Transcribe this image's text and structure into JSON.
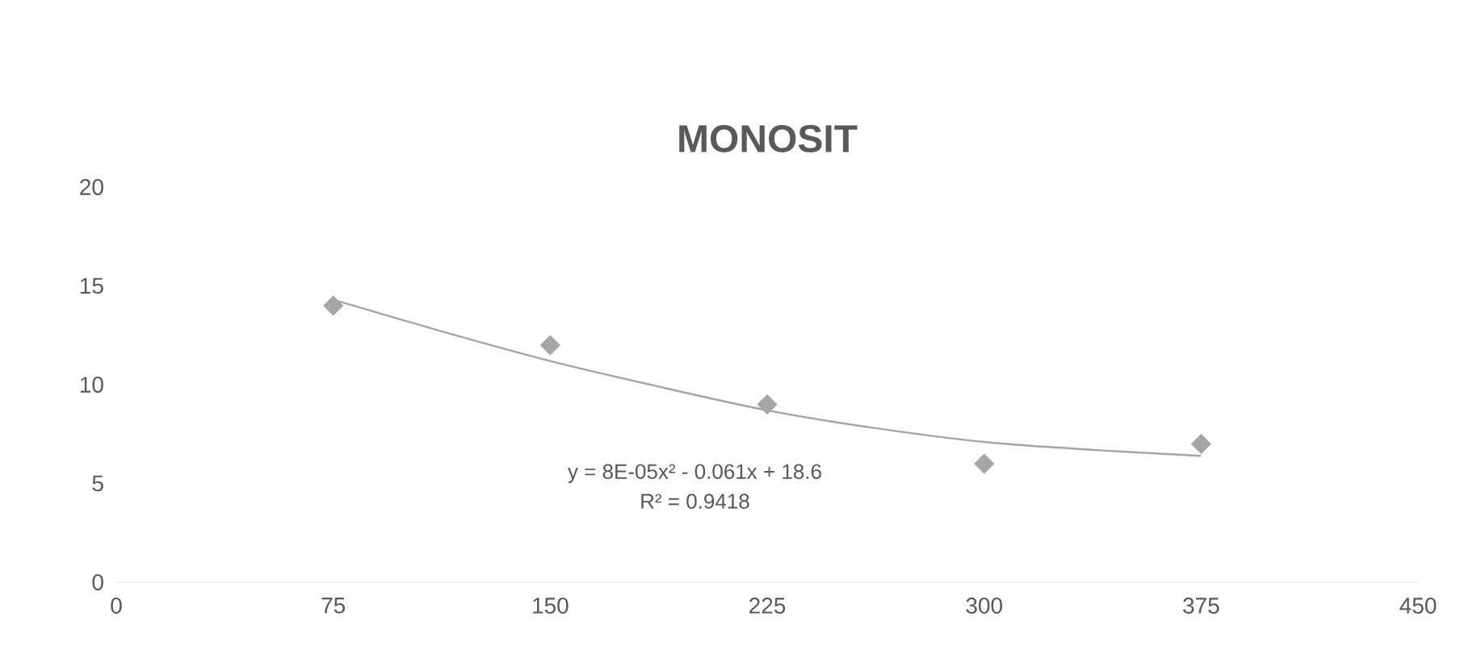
{
  "chart_data": {
    "type": "scatter",
    "title": "MONOSIT",
    "xlim": [
      0,
      450
    ],
    "xticks": [
      0,
      75,
      150,
      225,
      300,
      375,
      450
    ],
    "ylim": [
      0,
      20
    ],
    "yticks": [
      0,
      5,
      10,
      15,
      20
    ],
    "grid": false,
    "series": [
      {
        "color": "#a5a5a5",
        "marker": "diamond",
        "x": [
          75,
          150,
          225,
          300,
          375
        ],
        "values": [
          14,
          12,
          9,
          6,
          7
        ]
      },
      {
        "type": "line",
        "color": "#a5a5a5",
        "marker": "none",
        "line_style": "solid",
        "x": [
          75,
          112.5,
          150,
          187.5,
          225,
          262.5,
          300,
          337.5,
          375
        ],
        "values": [
          14.3,
          12.7,
          11.2,
          9.9,
          8.7,
          7.8,
          7.1,
          6.7,
          6.4
        ]
      }
    ],
    "annotations": [
      "y = 8E-05x² - 0.061x + 18.6",
      "R² = 0.9418"
    ]
  }
}
